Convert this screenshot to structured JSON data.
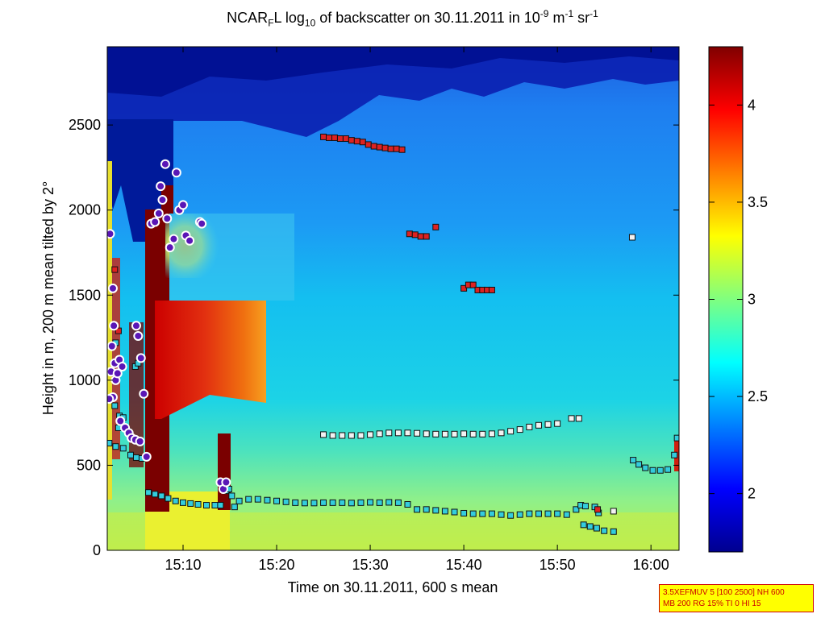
{
  "chart_data": {
    "type": "heatmap",
    "title_parts": {
      "a": "NCAR",
      "a_sub": "F",
      "b": "L log",
      "b_sub": "10",
      "c": " of backscatter on 30.11.2011 in 10",
      "c_sup": "-9",
      "d": " m",
      "d_sup": "-1",
      "e": " sr",
      "e_sup": "-1"
    },
    "xlabel": "Time on 30.11.2011, 600 s mean",
    "ylabel": "Height in m, 200 m mean tilted by 2°",
    "x_ticks": [
      "15:10",
      "15:20",
      "15:30",
      "15:40",
      "15:50",
      "16:00"
    ],
    "x_tick_minutes": [
      910,
      920,
      930,
      940,
      950,
      960
    ],
    "xlim_minutes": [
      901.9,
      963
    ],
    "y_ticks": [
      0,
      500,
      1000,
      1500,
      2000,
      2500
    ],
    "ylim": [
      0,
      2960
    ],
    "colorbar": {
      "ticks": [
        2,
        2.5,
        3,
        3.5,
        4
      ],
      "range": [
        1.7,
        4.3
      ],
      "colormap": "jet"
    },
    "background_colors": {
      "upper_dark_blue": "#00129a",
      "upper_blue": "#1e74ea",
      "middle_cyan": "#12c5ee",
      "lower_green": "#58e6b2",
      "surface_yellow_green": "#c9ef45",
      "dark_red": "#7a0000",
      "red": "#e3190e",
      "yellow": "#fcf000"
    },
    "series": [
      {
        "name": "boundary layer (cyan squares)",
        "color": "#33ccdd",
        "points": [
          [
            906.3,
            340
          ],
          [
            907,
            330
          ],
          [
            907.7,
            320
          ],
          [
            908.4,
            305
          ],
          [
            909.2,
            290
          ],
          [
            910,
            280
          ],
          [
            910.8,
            275
          ],
          [
            911.6,
            270
          ],
          [
            912.5,
            265
          ],
          [
            913.4,
            265
          ],
          [
            914,
            265
          ],
          [
            915.5,
            255
          ],
          [
            916,
            290
          ],
          [
            917,
            300
          ],
          [
            918,
            300
          ],
          [
            919,
            295
          ],
          [
            920,
            290
          ],
          [
            921,
            285
          ],
          [
            922,
            280
          ],
          [
            923,
            278
          ],
          [
            924,
            278
          ],
          [
            925,
            280
          ],
          [
            926,
            280
          ],
          [
            927,
            280
          ],
          [
            928,
            278
          ],
          [
            929,
            280
          ],
          [
            930,
            282
          ],
          [
            931,
            280
          ],
          [
            932,
            282
          ],
          [
            933,
            280
          ],
          [
            934,
            270
          ],
          [
            935,
            240
          ],
          [
            936,
            240
          ],
          [
            937,
            235
          ],
          [
            938,
            230
          ],
          [
            939,
            225
          ],
          [
            940,
            218
          ],
          [
            941,
            215
          ],
          [
            942,
            215
          ],
          [
            943,
            215
          ],
          [
            944,
            210
          ],
          [
            945,
            205
          ],
          [
            946,
            210
          ],
          [
            947,
            215
          ],
          [
            948,
            215
          ],
          [
            949,
            215
          ],
          [
            950,
            215
          ],
          [
            951,
            210
          ],
          [
            952,
            240
          ],
          [
            952.5,
            265
          ],
          [
            953,
            260
          ],
          [
            954,
            255
          ],
          [
            954.4,
            220
          ],
          [
            952.8,
            150
          ],
          [
            953.5,
            140
          ],
          [
            954.2,
            130
          ],
          [
            955,
            115
          ],
          [
            956,
            110
          ],
          [
            958.1,
            530
          ],
          [
            958.7,
            505
          ],
          [
            959.4,
            485
          ],
          [
            960.2,
            470
          ],
          [
            961,
            470
          ],
          [
            961.8,
            475
          ],
          [
            962.5,
            560
          ],
          [
            962.8,
            660
          ],
          [
            902.1,
            630
          ],
          [
            902.8,
            610
          ],
          [
            903.6,
            600
          ],
          [
            904.4,
            560
          ],
          [
            905,
            545
          ],
          [
            905.6,
            540
          ],
          [
            906.1,
            550
          ],
          [
            902.7,
            850
          ],
          [
            903.2,
            790
          ],
          [
            903.6,
            780
          ],
          [
            903.1,
            720
          ],
          [
            904.1,
            700
          ],
          [
            914.6,
            350
          ],
          [
            914.9,
            360
          ],
          [
            915.2,
            320
          ],
          [
            904.9,
            1080
          ],
          [
            905.2,
            1100
          ],
          [
            902.8,
            1220
          ]
        ]
      },
      {
        "name": "layer top (white squares)",
        "color": "#f2f2f2",
        "points": [
          [
            925,
            680
          ],
          [
            926,
            675
          ],
          [
            927,
            675
          ],
          [
            928,
            675
          ],
          [
            929,
            675
          ],
          [
            930,
            680
          ],
          [
            931,
            685
          ],
          [
            932,
            690
          ],
          [
            933,
            690
          ],
          [
            934,
            690
          ],
          [
            935,
            688
          ],
          [
            936,
            685
          ],
          [
            937,
            683
          ],
          [
            938,
            683
          ],
          [
            939,
            683
          ],
          [
            940,
            685
          ],
          [
            941,
            683
          ],
          [
            942,
            683
          ],
          [
            943,
            685
          ],
          [
            944,
            690
          ],
          [
            945,
            700
          ],
          [
            946,
            710
          ],
          [
            947,
            725
          ],
          [
            948,
            735
          ],
          [
            949,
            740
          ],
          [
            950,
            745
          ],
          [
            951.5,
            775
          ],
          [
            952.3,
            775
          ],
          [
            958,
            1840
          ],
          [
            956,
            230
          ]
        ]
      },
      {
        "name": "cloud layers (red squares)",
        "color": "#dd2222",
        "points": [
          [
            925,
            2430
          ],
          [
            925.6,
            2425
          ],
          [
            926.2,
            2425
          ],
          [
            926.8,
            2420
          ],
          [
            927.4,
            2420
          ],
          [
            928,
            2410
          ],
          [
            928.6,
            2405
          ],
          [
            929.2,
            2400
          ],
          [
            929.8,
            2385
          ],
          [
            930.4,
            2375
          ],
          [
            931,
            2370
          ],
          [
            931.6,
            2365
          ],
          [
            932.2,
            2360
          ],
          [
            932.8,
            2360
          ],
          [
            933.4,
            2355
          ],
          [
            934.2,
            1860
          ],
          [
            934.8,
            1855
          ],
          [
            935.4,
            1845
          ],
          [
            936,
            1845
          ],
          [
            937,
            1900
          ],
          [
            940,
            1540
          ],
          [
            940.5,
            1560
          ],
          [
            941,
            1560
          ],
          [
            941.5,
            1530
          ],
          [
            942,
            1530
          ],
          [
            942.5,
            1530
          ],
          [
            943,
            1530
          ],
          [
            954.3,
            240
          ],
          [
            902.7,
            1650
          ],
          [
            903.1,
            1290
          ]
        ]
      },
      {
        "name": "aerosol / cloud base (purple circles)",
        "color": "#5a16b6",
        "points": [
          [
            902.2,
            1860
          ],
          [
            902.5,
            1540
          ],
          [
            902.6,
            1320
          ],
          [
            902.4,
            1200
          ],
          [
            902.7,
            1100
          ],
          [
            902.3,
            1050
          ],
          [
            902.8,
            1000
          ],
          [
            902.5,
            900
          ],
          [
            902.1,
            890
          ],
          [
            903.2,
            1120
          ],
          [
            903.5,
            1080
          ],
          [
            903,
            1040
          ],
          [
            903.3,
            760
          ],
          [
            903.8,
            720
          ],
          [
            904.2,
            690
          ],
          [
            904.5,
            660
          ],
          [
            904.9,
            650
          ],
          [
            905.4,
            640
          ],
          [
            905.8,
            920
          ],
          [
            905.5,
            1130
          ],
          [
            905.2,
            1260
          ],
          [
            905,
            1320
          ],
          [
            906.1,
            550
          ],
          [
            906.6,
            1920
          ],
          [
            907,
            1930
          ],
          [
            907.4,
            1980
          ],
          [
            907.6,
            2140
          ],
          [
            907.8,
            2060
          ],
          [
            908.1,
            2270
          ],
          [
            908.3,
            1950
          ],
          [
            908.6,
            1780
          ],
          [
            909,
            1830
          ],
          [
            909.3,
            2220
          ],
          [
            909.6,
            2000
          ],
          [
            910,
            2030
          ],
          [
            910.3,
            1850
          ],
          [
            910.7,
            1820
          ],
          [
            911.8,
            1930
          ],
          [
            912,
            1920
          ],
          [
            914,
            400
          ],
          [
            914.3,
            360
          ],
          [
            914.6,
            400
          ]
        ]
      }
    ],
    "settings_box": {
      "line1": "3.5XEFMUV 5 [100 2500] NH 600",
      "line2": "MB 200 RG 15% TI 0 HI 15",
      "background": "#ffff00",
      "text_color": "#cc0000"
    }
  }
}
